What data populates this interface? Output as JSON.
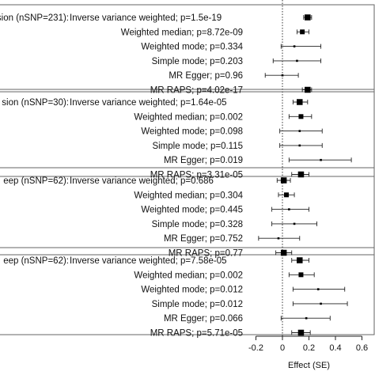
{
  "chart_data": {
    "type": "forest",
    "xlabel": "Effect (SE)",
    "xlim": [
      -0.2,
      0.6
    ],
    "xticks": [
      "-0.2",
      "0",
      "0.2",
      "0.4",
      "0.6"
    ],
    "xtick_values": [
      -0.2,
      0,
      0.2,
      0.4,
      0.6
    ],
    "reference_line": 0,
    "groups": [
      {
        "label": "sion (nSNP=231):",
        "rows": [
          {
            "label": "Inverse variance weighted; p=1.5e-19",
            "estimate": 0.19,
            "lower": 0.16,
            "upper": 0.22
          },
          {
            "label": "Weighted median; p=8.72e-09",
            "estimate": 0.15,
            "lower": 0.11,
            "upper": 0.2
          },
          {
            "label": "Weighted mode; p=0.334",
            "estimate": 0.09,
            "lower": -0.01,
            "upper": 0.29
          },
          {
            "label": "Simple mode; p=0.203",
            "estimate": 0.11,
            "lower": -0.07,
            "upper": 0.29
          },
          {
            "label": "MR Egger; p=0.96",
            "estimate": 0.0,
            "lower": -0.13,
            "upper": 0.12
          },
          {
            "label": "MR RAPS; p=4.02e-17",
            "estimate": 0.19,
            "lower": 0.15,
            "upper": 0.22
          }
        ]
      },
      {
        "label": "sion (nSNP=30):",
        "rows": [
          {
            "label": "Inverse variance weighted; p=1.64e-05",
            "estimate": 0.13,
            "lower": 0.08,
            "upper": 0.19
          },
          {
            "label": "Weighted median; p=0.002",
            "estimate": 0.14,
            "lower": 0.05,
            "upper": 0.22
          },
          {
            "label": "Weighted mode; p=0.098",
            "estimate": 0.13,
            "lower": -0.02,
            "upper": 0.3
          },
          {
            "label": "Simple mode; p=0.115",
            "estimate": 0.13,
            "lower": -0.02,
            "upper": 0.3
          },
          {
            "label": "MR Egger; p=0.019",
            "estimate": 0.29,
            "lower": 0.05,
            "upper": 0.52
          },
          {
            "label": "MR RAPS; p=3.31e-05",
            "estimate": 0.14,
            "lower": 0.07,
            "upper": 0.2
          }
        ]
      },
      {
        "label": "eep (nSNP=62):",
        "rows": [
          {
            "label": "Inverse variance weighted; p=0.686",
            "estimate": 0.01,
            "lower": -0.04,
            "upper": 0.06
          },
          {
            "label": "Weighted median; p=0.304",
            "estimate": 0.03,
            "lower": -0.03,
            "upper": 0.09
          },
          {
            "label": "Weighted mode; p=0.445",
            "estimate": 0.05,
            "lower": -0.08,
            "upper": 0.2
          },
          {
            "label": "Simple mode; p=0.328",
            "estimate": 0.09,
            "lower": -0.08,
            "upper": 0.26
          },
          {
            "label": "MR Egger; p=0.752",
            "estimate": -0.03,
            "lower": -0.18,
            "upper": 0.13
          },
          {
            "label": "MR RAPS; p=0.77",
            "estimate": 0.01,
            "lower": -0.05,
            "upper": 0.07
          }
        ]
      },
      {
        "label": "eep (nSNP=62):",
        "rows": [
          {
            "label": "Inverse variance weighted; p=7.58e-05",
            "estimate": 0.13,
            "lower": 0.07,
            "upper": 0.2
          },
          {
            "label": "Weighted median; p=0.002",
            "estimate": 0.14,
            "lower": 0.05,
            "upper": 0.24
          },
          {
            "label": "Weighted mode; p=0.012",
            "estimate": 0.27,
            "lower": 0.08,
            "upper": 0.47
          },
          {
            "label": "Simple mode; p=0.012",
            "estimate": 0.29,
            "lower": 0.08,
            "upper": 0.49
          },
          {
            "label": "MR Egger; p=0.066",
            "estimate": 0.18,
            "lower": -0.01,
            "upper": 0.36
          },
          {
            "label": "MR RAPS; p=5.71e-05",
            "estimate": 0.14,
            "lower": 0.07,
            "upper": 0.21
          }
        ]
      }
    ]
  }
}
